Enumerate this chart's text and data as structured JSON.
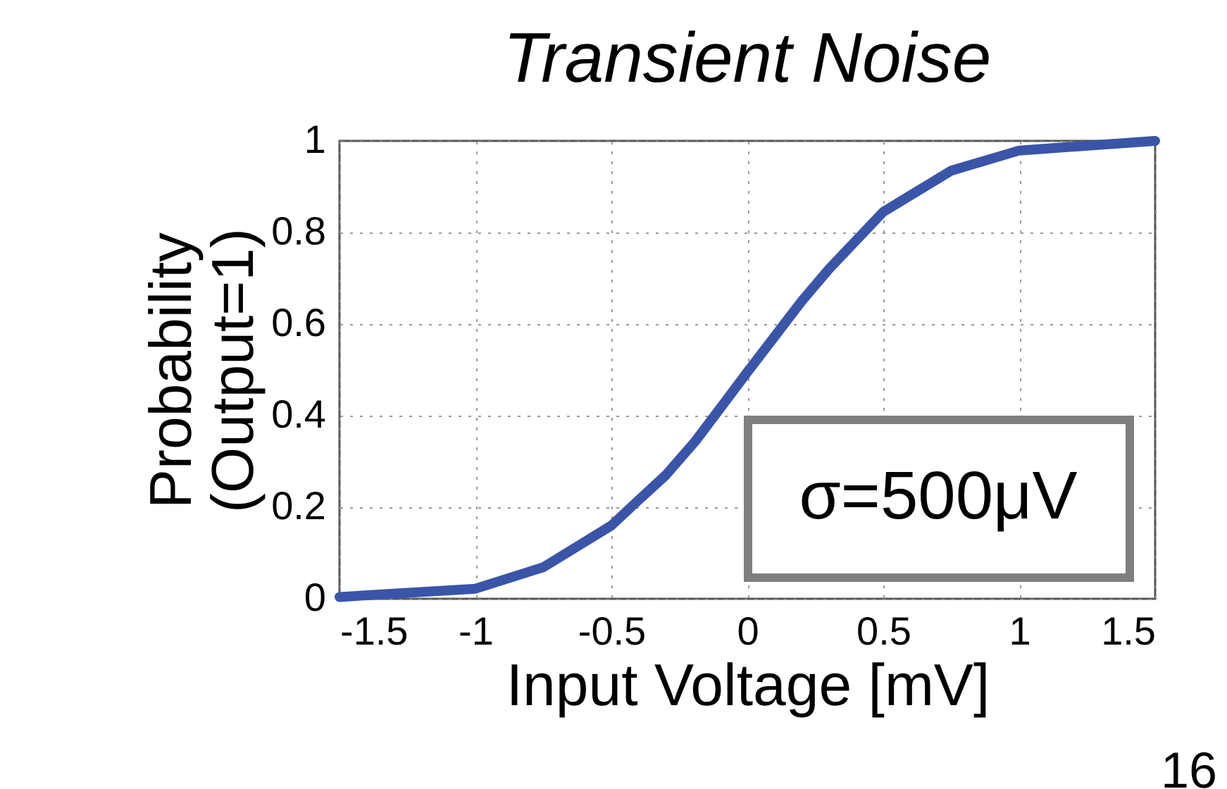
{
  "chart_data": {
    "type": "line",
    "title": "Transient Noise",
    "xlabel": "Input Voltage [mV]",
    "ylabel": "Probability\n(Output=1)",
    "x": [
      -1.5,
      -1,
      -0.75,
      -0.5,
      -0.41,
      -0.3,
      -0.19,
      0,
      0.2,
      0.3,
      0.5,
      0.75,
      1,
      1.5
    ],
    "series": [
      {
        "color": "#3a55a8",
        "values": [
          0.004,
          0.022,
          0.069,
          0.16,
          0.21,
          0.27,
          0.345,
          0.495,
          0.65,
          0.72,
          0.845,
          0.935,
          0.979,
          1.0
        ]
      }
    ],
    "xlim": [
      -1.5,
      1.5
    ],
    "xticks": [
      -1.5,
      -1,
      -0.5,
      0,
      0.5,
      1,
      1.5
    ],
    "ylim": [
      0,
      1
    ],
    "yticks": [
      0,
      0.2,
      0.4,
      0.6,
      0.8,
      1
    ],
    "grid": true,
    "line_style": "solid",
    "annotations": [
      "σ=500μV",
      "16"
    ]
  }
}
